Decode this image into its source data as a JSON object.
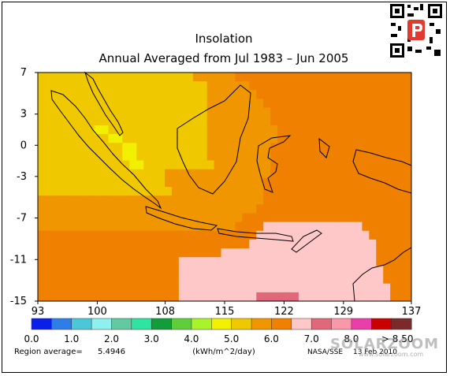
{
  "chart_data": {
    "type": "heatmap",
    "title": "Insolation",
    "subtitle": "Annual Averaged from Jul 1983 – Jun 2005",
    "unit": "(kWh/m^2/day)",
    "x_ticks": [
      93,
      100,
      108,
      115,
      122,
      129,
      137
    ],
    "y_ticks": [
      7,
      3,
      0,
      -3,
      -7,
      -11,
      -15
    ],
    "xlim": [
      93,
      137
    ],
    "ylim": [
      -15,
      7
    ],
    "colorbar": {
      "colors": [
        "#0a1fe8",
        "#2f7ee8",
        "#4bc8d8",
        "#8ff0f0",
        "#63c9a0",
        "#2ee4a0",
        "#109d3a",
        "#5ecf3a",
        "#aaf22a",
        "#f0f000",
        "#f0c800",
        "#f09600",
        "#f08000",
        "#ffc8c8",
        "#e06878",
        "#f898a8",
        "#e840a8",
        "#c80000",
        "#7a2a2a"
      ],
      "labels": [
        "0.0",
        "1.0",
        "2.0",
        "3.0",
        "4.0",
        "5.0",
        "6.0",
        "7.0",
        "8.0",
        "> 8.50"
      ]
    },
    "region_average_label": "Region average=",
    "region_average": "5.4946",
    "source": "NASA/SSE",
    "date": "13 Feb 2010",
    "watermark": "SOLARZOOM",
    "watermark_url": "www.solarzoom.com",
    "value_classes": {
      "A": 6.25,
      "B": 5.75,
      "C": 5.25,
      "D": 4.75,
      "E": 4.25,
      "P": 6.75,
      "H": 7.25
    },
    "grid_rows": [
      "CCCCCCCCCCCCCCCCCCCCCCBBBBBBAAAAAAAAAAAAAAAAAAAAAAAAA",
      "CCCCCCCCCCCCCCCCCCCCCCCCBBBBBBAAAAAAAAAAAAAAAAAAAAAAA",
      "CCCCCCCCCCCCCCCCCCCCCCCCBBBBBBBAAAAAAAAAAAAAAAAAAAAAA",
      "CCCCCCCCCCCCCCCCCCCCCCCCBBBBBBBBAAAAAAAAAAAAAAAAAAAAA",
      "CCCCCCCCCCCCCCCCCCCCCCCCBBBBBBBBBAAAAAAAAAAAAAAAAAAAA",
      "CCCCCCCCCCCCCCCCCCCCCCCCBBBBBBBBBAAAAAAAAAAAAAAAAAAAA",
      "CCCCCCCCDDCCCCCCCCCCCCCCBBBBBBBBBBAAAAAAAAAAAAAAAAAAA",
      "CCCCCCCCCCDDCCCCCCCCCCCCBBBBBBBBBBAAAAAAAAAAAAAAAAAAA",
      "CCCCCCCCCCCCDDCCCCCCCCCCBBBBBBBBBAAAAAAAAAAAAAAAAAAAA",
      "CCCCCCCCCCCCDDCCCCCCCCCCBBBBBBBBBAAAAAAAAAAAAAAAAAAAA",
      "CCCCCCCCCCCCCDDCCCCCCCCCCBBBBBBBBAAAAAAAAAAAAAAAAAAAA",
      "CCCCCCCCCCCCCCCCCCBBBBBBBBBBBBBBBAAAAAAAAAAAAAAAAAAAA",
      "CCCCCCCCCCCCCCCCCCBBBBBBBBBBBBBBAAAAAAAAAAAAAAAAAAAAA",
      "CCCCCCCCCCCCCCCCCCCBBBBBBBBBBBBBAAAAAAAAAAAAAAAAAAAAA",
      "BBBBBBBBBBBBBBBBBBBBBBBBBBBBBBBBAAAAAAAAAAAAAAAAAAAAA",
      "BBBBBBBBBBBBBBBBBBBBBBBBBBBBBBBAAAAAAAAAAAAAAAAAAAAAA",
      "BBBBBBBBBBBBBBBBBBBBBBBBBBBBBAAAAAAAAAAAAAAAAAAAAAAAA",
      "BBBBBBBBBBBBBBBBBBBBBBBBBBBBAAAAPPPPPPPPPPPPPPAAAAAAA",
      "AAAAAAAAAAAAAAAAAAAAAAAAAAAAAAAPPPPPPPPPPPPPPPPAAAAAA",
      "AAAAAAAAAAAAAAAAAAAAAAAAAAAAAAPPPPPPPPPPPPPPPPPPAAAAA",
      "AAAAAAAAAAAAAAAAAAAAAAAAAAPPPPPPPPPPPPPPPPPPPPPPAAAAA",
      "AAAAAAAAAAAAAAAAAAAAPPPPPPPPPPPPPPPPPPPPPPPPPPPPAAAAA",
      "AAAAAAAAAAAAAAAAAAAAPPPPPPPPPPPPPPPPPPPPPPPPPPPPPAAAA",
      "AAAAAAAAAAAAAAAAAAAAPPPPPPPPPPPPPPPPPPPPPPPPPPPPPAAAA",
      "AAAAAAAAAAAAAAAAAAAAPPPPPPPPPPPPPPPPPPPPPPPPPPPPPPAAA",
      "AAAAAAAAAAAAAAAAAAAAPPPPPPPPPPPHHHHHHPPPPPPPPPPPPPAAA"
    ]
  }
}
